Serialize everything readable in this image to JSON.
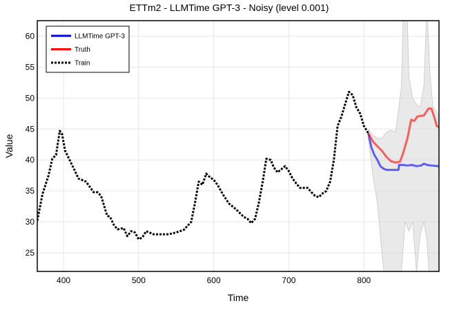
{
  "chart_data": {
    "type": "line",
    "title": "ETTm2 - LLMTime GPT-3 - Noisy (level 0.001)",
    "xlabel": "Time",
    "ylabel": "Value",
    "xlim": [
      365,
      900
    ],
    "ylim": [
      22,
      62.5
    ],
    "xticks": [
      400,
      500,
      600,
      700,
      800
    ],
    "yticks": [
      25,
      30,
      35,
      40,
      45,
      50,
      55,
      60
    ],
    "grid": true,
    "legend_position": "top-left",
    "legend": [
      {
        "label": "LLMTime GPT-3",
        "color": "#0000ff",
        "style": "solid"
      },
      {
        "label": "Truth",
        "color": "#ff0000",
        "style": "solid"
      },
      {
        "label": "Train",
        "color": "#000000",
        "style": "dotted"
      }
    ],
    "series": [
      {
        "name": "Train",
        "color": "#000000",
        "x": [
          365,
          372,
          380,
          385,
          390,
          395,
          398,
          402,
          410,
          420,
          430,
          440,
          445,
          450,
          458,
          462,
          467,
          472,
          480,
          485,
          490,
          495,
          500,
          505,
          510,
          516,
          520,
          530,
          540,
          550,
          555,
          560,
          570,
          575,
          580,
          585,
          590,
          595,
          600,
          605,
          612,
          620,
          630,
          640,
          645,
          650,
          655,
          660,
          666,
          670,
          676,
          680,
          685,
          690,
          695,
          700,
          705,
          710,
          715,
          720,
          725,
          730,
          735,
          740,
          745,
          750,
          755,
          760,
          765,
          770,
          775,
          780,
          785,
          790,
          795,
          800,
          806
        ],
        "values": [
          30.2,
          34.5,
          37.5,
          40.2,
          40.8,
          44.7,
          44.2,
          41.5,
          39.5,
          37.0,
          36.5,
          34.8,
          34.8,
          34.2,
          31.0,
          30.8,
          29.5,
          28.8,
          29.0,
          27.7,
          28.5,
          28.3,
          27.2,
          27.5,
          28.5,
          28.2,
          28.0,
          28.0,
          28.0,
          28.3,
          28.5,
          28.7,
          30.0,
          33.0,
          36.5,
          36.0,
          37.8,
          37.2,
          36.8,
          36.0,
          34.5,
          33.0,
          32.0,
          30.8,
          30.5,
          29.8,
          30.5,
          33.0,
          37.0,
          40.2,
          40.0,
          38.8,
          38.0,
          38.5,
          39.0,
          38.2,
          37.0,
          36.2,
          35.5,
          35.5,
          35.5,
          34.8,
          34.2,
          34.0,
          34.6,
          35.0,
          36.5,
          40.0,
          45.5,
          47.0,
          49.0,
          51.0,
          50.5,
          48.5,
          47.5,
          45.5,
          44.3
        ]
      },
      {
        "name": "Truth",
        "color": "#ff0000",
        "x": [
          806,
          812,
          818,
          824,
          830,
          836,
          842,
          848,
          852,
          858,
          863,
          867,
          871,
          875,
          880,
          886,
          890,
          894,
          897,
          900
        ],
        "values": [
          44.3,
          43.0,
          42.2,
          41.5,
          40.5,
          39.8,
          39.6,
          39.7,
          41.0,
          43.5,
          46.5,
          46.3,
          47.0,
          47.1,
          47.2,
          48.3,
          48.3,
          46.8,
          45.5,
          45.3
        ]
      },
      {
        "name": "LLMTime GPT-3",
        "color": "#0000ff",
        "x": [
          806,
          810,
          814,
          818,
          822,
          826,
          830,
          836,
          842,
          846,
          847,
          852,
          858,
          864,
          870,
          876,
          880,
          884,
          890,
          900
        ],
        "values": [
          44.3,
          42.0,
          40.8,
          40.0,
          39.0,
          38.6,
          38.4,
          38.4,
          38.4,
          38.4,
          39.2,
          39.2,
          39.1,
          39.2,
          39.0,
          39.1,
          39.4,
          39.2,
          39.1,
          39.0
        ]
      }
    ],
    "confidence_band": {
      "color": "#d3d3d3",
      "x": [
        806,
        812,
        818,
        824,
        830,
        836,
        842,
        846,
        850,
        855,
        860,
        865,
        870,
        875,
        880,
        884,
        888,
        892,
        896,
        900
      ],
      "upper": [
        45.0,
        44.0,
        43.5,
        43.5,
        44.5,
        44.8,
        44.5,
        48.0,
        52.0,
        75.0,
        53.5,
        50.0,
        49.0,
        48.5,
        52.0,
        65.0,
        54.0,
        48.5,
        48.0,
        47.0
      ],
      "lower": [
        43.5,
        37.5,
        33.0,
        25.0,
        18.0,
        18.0,
        19.0,
        19.0,
        22.0,
        30.0,
        28.5,
        30.0,
        22.0,
        28.0,
        30.0,
        27.0,
        19.0,
        18.0,
        18.0,
        18.0
      ]
    }
  }
}
